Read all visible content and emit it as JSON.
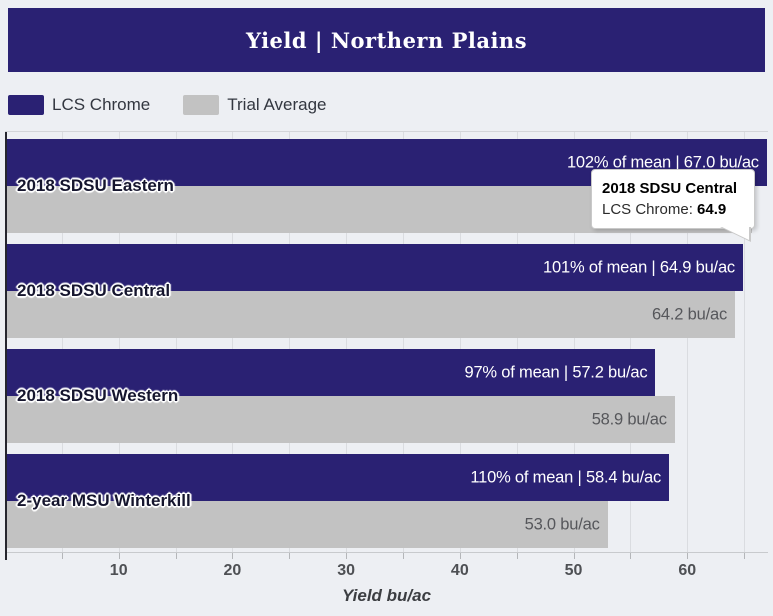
{
  "title": "Yield | Northern Plains",
  "colors": {
    "navy": "#2a2173",
    "gray": "#c2c2c2",
    "background": "#edeff3",
    "gridline": "#dadce0"
  },
  "legend": [
    {
      "label": "LCS Chrome",
      "color": "#2a2173"
    },
    {
      "label": "Trial Average",
      "color": "#c2c2c2"
    }
  ],
  "tooltip": {
    "title": "2018 SDSU Central",
    "series_label": "LCS Chrome:",
    "value": "64.9"
  },
  "axis": {
    "label": "Yield bu/ac",
    "major_ticks": [
      10,
      20,
      30,
      40,
      50,
      60
    ],
    "minor_tick_interval": 5,
    "max": 67.1
  },
  "chart_data": {
    "type": "bar",
    "orientation": "horizontal",
    "title": "Yield | Northern Plains",
    "xlabel": "Yield bu/ac",
    "xlim": [
      0,
      67.1
    ],
    "grid": true,
    "legend_position": "top-left",
    "categories": [
      "2018 SDSU Eastern",
      "2018 SDSU Central",
      "2018 SDSU Western",
      "2-year MSU Winterkill"
    ],
    "series": [
      {
        "name": "LCS Chrome",
        "color": "#2a2173",
        "values": [
          67.0,
          64.9,
          57.2,
          58.4
        ],
        "labels": [
          "102% of mean | 67.0 bu/ac",
          "101% of mean | 64.9 bu/ac",
          "97% of mean | 57.2 bu/ac",
          "110% of mean | 58.4 bu/ac"
        ]
      },
      {
        "name": "Trial Average",
        "color": "#c2c2c2",
        "values": [
          65.7,
          64.2,
          58.9,
          53.0
        ],
        "labels": [
          "",
          "64.2 bu/ac",
          "58.9 bu/ac",
          "53.0 bu/ac"
        ]
      }
    ]
  }
}
